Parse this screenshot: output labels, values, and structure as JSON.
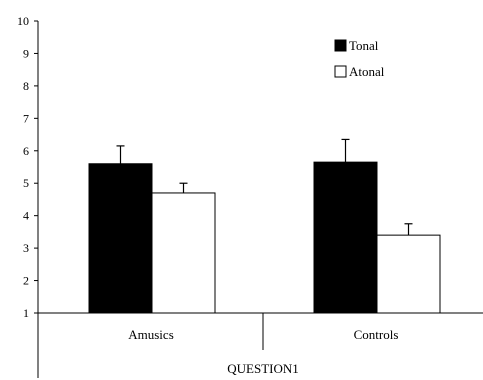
{
  "chart_data": {
    "type": "bar",
    "title": "",
    "xlabel": "QUESTION1",
    "ylabel": "",
    "ylim": [
      1,
      10
    ],
    "yticks": [
      "1",
      "2",
      "3",
      "4",
      "5",
      "6",
      "7",
      "8",
      "9",
      "10"
    ],
    "categories": [
      "Amusics",
      "Controls"
    ],
    "series": [
      {
        "name": "Tonal",
        "values": [
          5.6,
          5.65
        ],
        "errors": [
          0.55,
          0.7
        ],
        "fill": "#000000"
      },
      {
        "name": "Atonal",
        "values": [
          4.7,
          3.4
        ],
        "errors": [
          0.3,
          0.35
        ],
        "fill": "#ffffff"
      }
    ],
    "legend_position": "top-right",
    "grid": false
  }
}
